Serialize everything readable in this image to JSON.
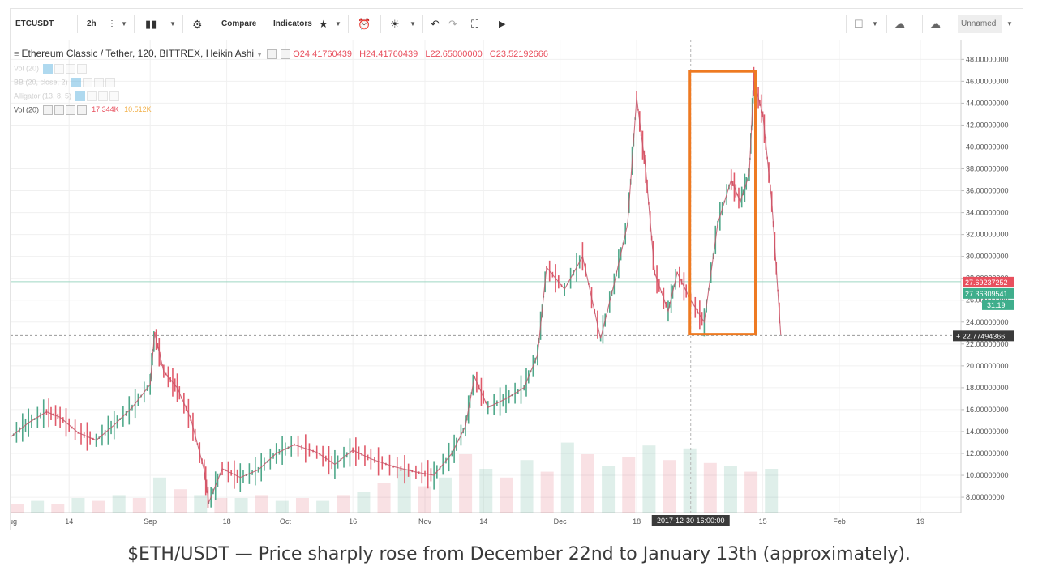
{
  "toolbar": {
    "symbol": "ETCUSDT",
    "interval": "2h",
    "compare": "Compare",
    "indicators": "Indicators",
    "layout_name": "Unnamed"
  },
  "legend": {
    "title": "Ethereum Classic / Tether, 120, BITTREX, Heikin Ashi",
    "o": "O24.41760439",
    "h": "H24.41760439",
    "l": "L22.65000000",
    "c": "C23.52192666"
  },
  "indicators": [
    {
      "label": "Vol (20)",
      "v1": "",
      "v2": "",
      "faded": true
    },
    {
      "label": "BB (20, close, 2)",
      "v1": "",
      "v2": "",
      "faded": true
    },
    {
      "label": "Alligator (13, 8, 5)",
      "v1": "",
      "v2": "",
      "faded": true
    },
    {
      "label": "Vol (20)",
      "v1": "17.344K",
      "v2": "10.512K",
      "faded": false
    }
  ],
  "price_labels": {
    "upper": "27.69237252",
    "lower": "27.36309541",
    "sub": "31.19",
    "crosshair": "22.77494366"
  },
  "crosshair_time": "2017-12-30 16:00:00",
  "caption": "$ETH/USDT — Price sharply rose from December 22nd to January 13th (approximately).",
  "colors": {
    "up": "#4fa88a",
    "down": "#e05a6a",
    "highlight": "#ee7a22",
    "price_red": "#e8505e",
    "price_green": "#3fae8c"
  },
  "chart_data": {
    "type": "line",
    "title": "Ethereum Classic / Tether, 120, BITTREX, Heikin Ashi",
    "xlabel": "",
    "ylabel": "",
    "y_ticks": [
      "48.00000000",
      "46.00000000",
      "44.00000000",
      "42.00000000",
      "40.00000000",
      "38.00000000",
      "36.00000000",
      "34.00000000",
      "32.00000000",
      "30.00000000",
      "28.00000000",
      "26.00000000",
      "24.00000000",
      "22.00000000",
      "20.00000000",
      "18.00000000",
      "16.00000000",
      "14.00000000",
      "12.00000000",
      "10.00000000",
      "8.00000000"
    ],
    "ylim": [
      6.6,
      49.8
    ],
    "x_ticks": [
      {
        "label": "Aug",
        "date": "2017-08-01"
      },
      {
        "label": "14",
        "date": "2017-08-14"
      },
      {
        "label": "Sep",
        "date": "2017-09-01"
      },
      {
        "label": "18",
        "date": "2017-09-18"
      },
      {
        "label": "Oct",
        "date": "2017-10-01"
      },
      {
        "label": "16",
        "date": "2017-10-16"
      },
      {
        "label": "Nov",
        "date": "2017-11-01"
      },
      {
        "label": "14",
        "date": "2017-11-14"
      },
      {
        "label": "Dec",
        "date": "2017-12-01"
      },
      {
        "label": "18",
        "date": "2017-12-18"
      },
      {
        "label": "15",
        "date": "2018-01-15"
      },
      {
        "label": "Feb",
        "date": "2018-02-01"
      },
      {
        "label": "19",
        "date": "2018-02-19"
      }
    ],
    "x_range": [
      "2017-08-01",
      "2018-02-28"
    ],
    "series": [
      {
        "values": [
          [
            "2017-08-01",
            13.5
          ],
          [
            "2017-08-05",
            14.8
          ],
          [
            "2017-08-09",
            15.8
          ],
          [
            "2017-08-12",
            15.3
          ],
          [
            "2017-08-16",
            13.9
          ],
          [
            "2017-08-20",
            13.2
          ],
          [
            "2017-08-24",
            14.6
          ],
          [
            "2017-08-28",
            16.2
          ],
          [
            "2017-09-01",
            18.3
          ],
          [
            "2017-09-02",
            23.0
          ],
          [
            "2017-09-04",
            19.5
          ],
          [
            "2017-09-07",
            18.0
          ],
          [
            "2017-09-10",
            15.2
          ],
          [
            "2017-09-13",
            10.5
          ],
          [
            "2017-09-14",
            7.5
          ],
          [
            "2017-09-17",
            10.6
          ],
          [
            "2017-09-21",
            9.8
          ],
          [
            "2017-09-25",
            10.5
          ],
          [
            "2017-09-29",
            12.0
          ],
          [
            "2017-10-03",
            12.8
          ],
          [
            "2017-10-08",
            12.1
          ],
          [
            "2017-10-12",
            11.0
          ],
          [
            "2017-10-16",
            12.3
          ],
          [
            "2017-10-20",
            11.5
          ],
          [
            "2017-10-25",
            10.8
          ],
          [
            "2017-10-30",
            10.3
          ],
          [
            "2017-11-03",
            10.0
          ],
          [
            "2017-11-07",
            12.0
          ],
          [
            "2017-11-10",
            14.5
          ],
          [
            "2017-11-12",
            19.0
          ],
          [
            "2017-11-15",
            16.2
          ],
          [
            "2017-11-19",
            17.0
          ],
          [
            "2017-11-23",
            18.0
          ],
          [
            "2017-11-26",
            21.0
          ],
          [
            "2017-11-28",
            29.0
          ],
          [
            "2017-12-02",
            27.0
          ],
          [
            "2017-12-06",
            30.0
          ],
          [
            "2017-12-10",
            22.5
          ],
          [
            "2017-12-13",
            27.5
          ],
          [
            "2017-12-16",
            33.0
          ],
          [
            "2017-12-18",
            44.5
          ],
          [
            "2017-12-20",
            38.0
          ],
          [
            "2017-12-22",
            28.5
          ],
          [
            "2017-12-25",
            25.0
          ],
          [
            "2017-12-27",
            28.5
          ],
          [
            "2017-12-30",
            26.0
          ],
          [
            "2018-01-02",
            24.0
          ],
          [
            "2018-01-05",
            33.0
          ],
          [
            "2018-01-08",
            37.0
          ],
          [
            "2018-01-10",
            35.0
          ],
          [
            "2018-01-12",
            37.5
          ],
          [
            "2018-01-13",
            46.0
          ],
          [
            "2018-01-15",
            43.0
          ],
          [
            "2018-01-17",
            35.0
          ],
          [
            "2018-01-19",
            22.8
          ]
        ]
      }
    ],
    "volume_values": [
      0.3,
      0.4,
      0.3,
      0.5,
      0.4,
      0.6,
      0.5,
      1.2,
      0.8,
      0.6,
      0.5,
      0.5,
      0.6,
      0.4,
      0.5,
      0.4,
      0.6,
      0.7,
      1.0,
      1.5,
      0.9,
      1.2,
      2.0,
      1.5,
      1.2,
      1.8,
      1.4,
      2.4,
      2.0,
      1.6,
      1.9,
      2.3,
      1.8,
      2.2,
      1.7,
      1.6,
      1.4,
      1.5
    ],
    "highlight_range": [
      "2017-12-30",
      "2018-01-13"
    ],
    "grid": true,
    "legend": "top-left"
  }
}
